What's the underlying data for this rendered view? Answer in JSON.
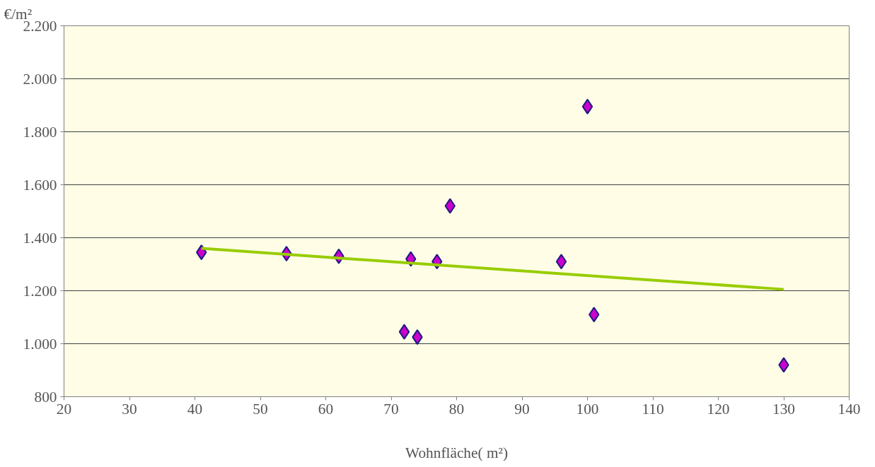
{
  "chart_data": {
    "type": "scatter",
    "xlabel": "Wohnfläche( m²)",
    "ylabel": "€/m²",
    "xlim": [
      20,
      140
    ],
    "xticks": [
      20,
      30,
      40,
      50,
      60,
      70,
      80,
      90,
      100,
      110,
      120,
      130,
      140
    ],
    "ylim": [
      800,
      2200
    ],
    "yticks": [
      {
        "value": 800,
        "label": "800"
      },
      {
        "value": 1000,
        "label": "1.000"
      },
      {
        "value": 1200,
        "label": "1.200"
      },
      {
        "value": 1400,
        "label": "1.400"
      },
      {
        "value": 1600,
        "label": "1.600"
      },
      {
        "value": 1800,
        "label": "1.800"
      },
      {
        "value": 2000,
        "label": "2.000"
      },
      {
        "value": 2200,
        "label": "2.200"
      }
    ],
    "grid": "y",
    "marker": "diamond",
    "series": [
      {
        "color": "#cc00cc",
        "x": [
          41,
          54,
          62,
          72,
          73,
          74,
          77,
          79,
          96,
          100,
          101,
          130
        ],
        "values": [
          1345,
          1340,
          1330,
          1045,
          1320,
          1025,
          1310,
          1520,
          1310,
          1895,
          1110,
          920
        ]
      },
      {
        "type": "line",
        "color": "#99cc00",
        "line_style": "solid",
        "marker": "none",
        "x": [
          41,
          130
        ],
        "values": [
          1360,
          1205
        ]
      }
    ]
  }
}
